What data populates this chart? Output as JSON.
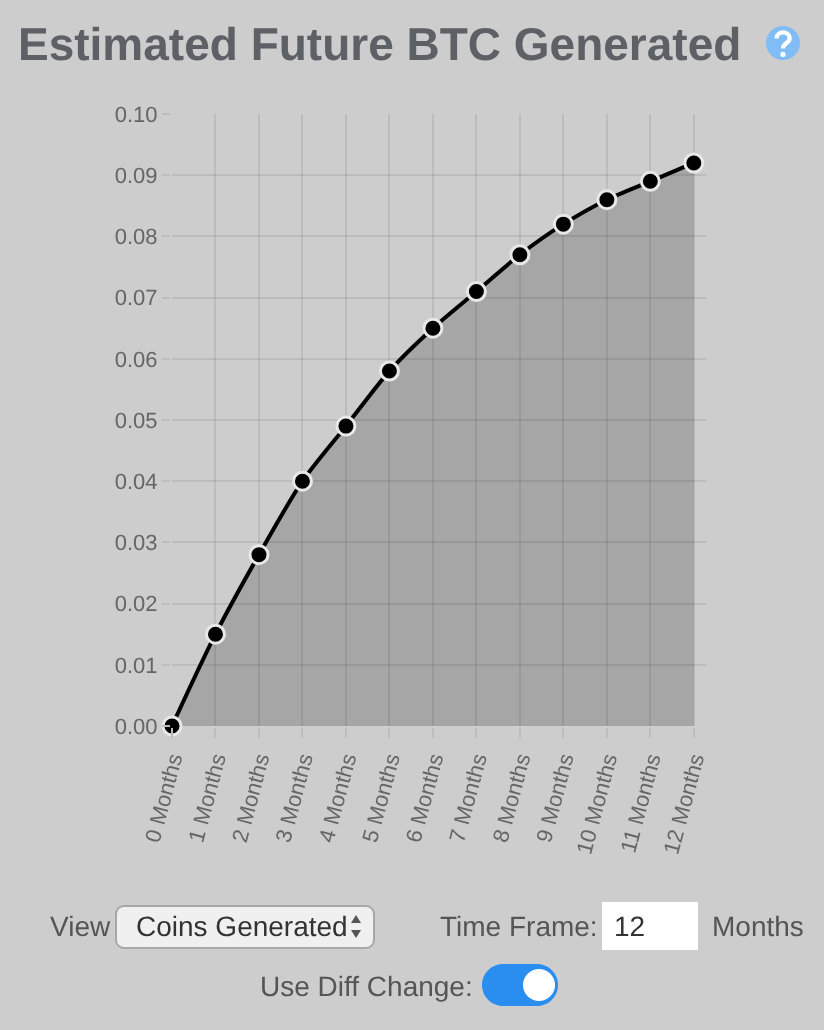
{
  "chart_data": {
    "type": "area",
    "title": "Estimated Future BTC Generated",
    "categories": [
      "0 Months",
      "1 Months",
      "2 Months",
      "3 Months",
      "4 Months",
      "5 Months",
      "6 Months",
      "7 Months",
      "8 Months",
      "9 Months",
      "10 Months",
      "11 Months",
      "12 Months"
    ],
    "values": [
      0,
      0.015,
      0.028,
      0.04,
      0.049,
      0.058,
      0.065,
      0.071,
      0.077,
      0.082,
      0.086,
      0.089,
      0.092
    ],
    "color": "#000000",
    "ylim": [
      0,
      0.1
    ],
    "yticks": [
      {
        "value": 0,
        "label": "0.00"
      },
      0.01,
      0.02,
      0.03,
      0.04,
      0.05,
      0.06,
      0.07,
      0.08,
      0.09,
      {
        "value": 0.1,
        "label": "0.10"
      }
    ],
    "grid": true,
    "marker": "circle",
    "line_style": "solid",
    "annotations": [
      "View",
      "Coins Generated",
      "Time Frame:",
      "12",
      "Months",
      "Use Diff Change:"
    ]
  }
}
